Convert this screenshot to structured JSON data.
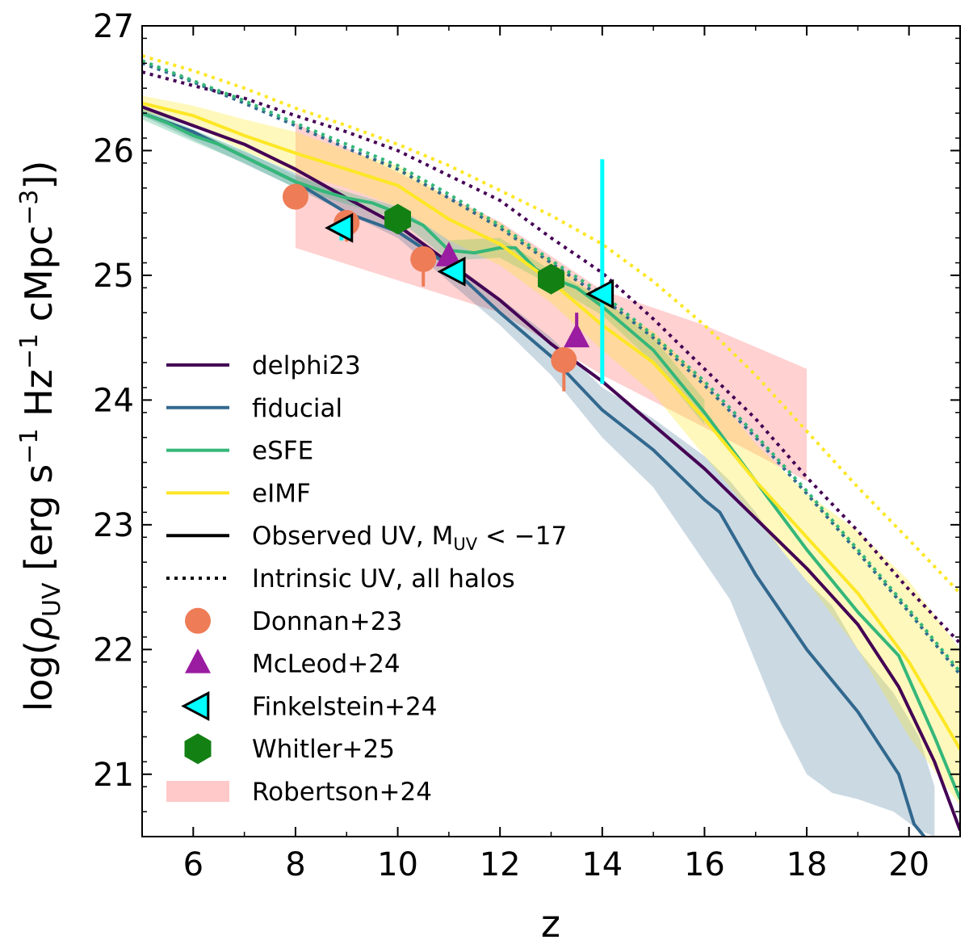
{
  "chart_data": {
    "type": "line",
    "title": "",
    "xlabel": "z",
    "ylabel": "log(ρUV [erg s−1 Hz−1 cMpc−3])",
    "ylabel_parts": {
      "prefix": "log(",
      "rho": "ρ",
      "rho_sub": "UV",
      "units": " [erg s",
      "exp1": "−1",
      "hz": " Hz",
      "exp2": "−1",
      "cmpc": " cMpc",
      "exp3": "−3",
      "suffix": "])"
    },
    "xlim": [
      5,
      21
    ],
    "ylim": [
      20.5,
      27
    ],
    "xticks": [
      6,
      8,
      10,
      12,
      14,
      16,
      18,
      20
    ],
    "yticks": [
      21,
      22,
      23,
      24,
      25,
      26,
      27
    ],
    "legend_position": "lower-left",
    "colors": {
      "delphi23": "#440154",
      "fiducial": "#31688e",
      "eSFE": "#35b779",
      "eIMF": "#fde725",
      "donnan": "#ee7c56",
      "mcleod": "#9a1ca0",
      "finkelstein": "#00ffff",
      "whitler": "#138013",
      "robertson": "#ffc9c9"
    },
    "series": [
      {
        "name": "delphi23",
        "key": "delphi23",
        "style": "solid",
        "x": [
          5,
          6,
          7,
          8,
          9,
          10,
          11,
          12,
          13,
          14,
          15,
          16,
          17,
          18,
          19,
          19.8,
          20.5,
          21
        ],
        "y": [
          26.35,
          26.2,
          26.05,
          25.85,
          25.62,
          25.4,
          25.1,
          24.8,
          24.45,
          24.15,
          23.8,
          23.45,
          23.05,
          22.65,
          22.2,
          21.7,
          21.1,
          20.55
        ]
      },
      {
        "name": "fiducial",
        "key": "fiducial",
        "style": "solid",
        "x": [
          5,
          6,
          7,
          8,
          9,
          10,
          11,
          12,
          13,
          14,
          15,
          16,
          16.3,
          17,
          18,
          19,
          19.8,
          20.1,
          20.3
        ],
        "y": [
          26.3,
          26.15,
          25.95,
          25.75,
          25.5,
          25.35,
          25.08,
          24.7,
          24.35,
          23.92,
          23.6,
          23.2,
          23.1,
          22.6,
          22.0,
          21.5,
          21.0,
          20.6,
          20.5
        ]
      },
      {
        "name": "eSFE",
        "key": "eSFE",
        "style": "solid",
        "x": [
          5,
          5.5,
          6,
          6.5,
          7,
          7.5,
          8,
          8.5,
          9,
          9.5,
          10,
          10.5,
          11,
          11.5,
          12,
          12.3,
          12.7,
          13,
          13.5,
          14,
          15,
          16,
          17,
          18,
          19,
          19.8,
          20.5,
          21
        ],
        "y": [
          26.3,
          26.22,
          26.12,
          26.05,
          25.95,
          25.85,
          25.75,
          25.68,
          25.62,
          25.58,
          25.5,
          25.4,
          25.2,
          25.18,
          25.22,
          25.22,
          25.05,
          24.98,
          24.9,
          24.75,
          24.4,
          23.9,
          23.35,
          22.8,
          22.3,
          21.95,
          21.3,
          20.8
        ]
      },
      {
        "name": "eIMF",
        "key": "eIMF",
        "style": "solid",
        "x": [
          5,
          6,
          7,
          8,
          9,
          10,
          11,
          12,
          13,
          14,
          15,
          16,
          17,
          18,
          19,
          20,
          21
        ],
        "y": [
          26.38,
          26.28,
          26.12,
          25.98,
          25.85,
          25.72,
          25.45,
          25.25,
          24.95,
          24.6,
          24.3,
          23.85,
          23.35,
          22.9,
          22.45,
          21.9,
          21.2
        ]
      },
      {
        "name": "delphi23 intrinsic",
        "key": "delphi23",
        "style": "dotted",
        "x": [
          5,
          6,
          7,
          8,
          9,
          10,
          11,
          12,
          13,
          14,
          15,
          16,
          17,
          18,
          19,
          20,
          21
        ],
        "y": [
          26.63,
          26.52,
          26.42,
          26.28,
          26.15,
          26.0,
          25.8,
          25.6,
          25.3,
          25.02,
          24.65,
          24.25,
          23.85,
          23.38,
          22.95,
          22.48,
          22.05
        ]
      },
      {
        "name": "fiducial intrinsic",
        "key": "fiducial",
        "style": "dotted",
        "x": [
          5,
          6,
          7,
          8,
          9,
          10,
          11,
          12,
          13,
          14,
          15,
          16,
          17,
          18,
          19,
          20,
          21
        ],
        "y": [
          26.7,
          26.55,
          26.38,
          26.2,
          26.02,
          25.85,
          25.62,
          25.38,
          25.1,
          24.82,
          24.5,
          24.12,
          23.7,
          23.25,
          22.78,
          22.3,
          21.8
        ]
      },
      {
        "name": "eSFE intrinsic",
        "key": "eSFE",
        "style": "dotted",
        "x": [
          5,
          6,
          7,
          8,
          9,
          10,
          11,
          12,
          13,
          14,
          15,
          16,
          17,
          18,
          19,
          20,
          21
        ],
        "y": [
          26.72,
          26.56,
          26.4,
          26.22,
          26.05,
          25.88,
          25.65,
          25.4,
          25.12,
          24.85,
          24.52,
          24.15,
          23.72,
          23.27,
          22.8,
          22.32,
          21.82
        ]
      },
      {
        "name": "eIMF intrinsic",
        "key": "eIMF",
        "style": "dotted",
        "x": [
          5,
          6,
          7,
          8,
          9,
          10,
          11,
          12,
          13,
          14,
          15,
          16,
          17,
          18,
          19,
          20,
          21
        ],
        "y": [
          26.76,
          26.64,
          26.5,
          26.34,
          26.2,
          26.05,
          25.88,
          25.68,
          25.48,
          25.25,
          24.95,
          24.6,
          24.2,
          23.75,
          23.3,
          22.88,
          22.45
        ]
      }
    ],
    "bands": [
      {
        "name": "fiducial scatter",
        "key": "fiducial",
        "opacity": 0.25,
        "x": [
          5,
          8,
          10,
          12,
          13,
          14,
          15,
          16,
          16.5,
          17,
          17.5,
          18,
          18.5,
          19,
          19.7,
          20.2,
          20.5
        ],
        "y_low": [
          26.28,
          25.7,
          25.3,
          24.6,
          24.2,
          23.7,
          23.3,
          22.7,
          22.4,
          21.9,
          21.4,
          21.0,
          20.85,
          20.8,
          20.7,
          20.55,
          20.5
        ],
        "y_high": [
          26.33,
          25.82,
          25.42,
          24.82,
          24.5,
          24.1,
          23.85,
          23.55,
          23.35,
          23.1,
          22.8,
          22.55,
          22.35,
          22.0,
          21.65,
          21.3,
          20.9
        ]
      },
      {
        "name": "eSFE scatter",
        "key": "eSFE",
        "opacity": 0.3,
        "x": [
          5,
          6,
          7,
          8,
          9,
          10,
          11,
          12,
          13,
          14,
          15,
          16
        ],
        "y_low": [
          26.25,
          26.07,
          25.9,
          25.7,
          25.57,
          25.45,
          25.12,
          25.14,
          24.92,
          24.68,
          24.3,
          23.8
        ],
        "y_high": [
          26.35,
          26.17,
          26.0,
          25.8,
          25.67,
          25.55,
          25.28,
          25.3,
          25.04,
          24.82,
          24.5,
          24.0
        ]
      },
      {
        "name": "eIMF scatter",
        "key": "eIMF",
        "opacity": 0.3,
        "x": [
          5,
          6,
          7,
          8,
          9,
          10,
          11,
          12,
          13,
          14,
          15,
          16,
          17,
          18,
          19,
          20,
          21
        ],
        "y_low": [
          26.32,
          26.2,
          26.0,
          25.82,
          25.7,
          25.55,
          25.28,
          25.08,
          24.78,
          24.4,
          24.05,
          23.55,
          23.05,
          22.55,
          22.0,
          21.3,
          20.75
        ],
        "y_high": [
          26.44,
          26.36,
          26.25,
          26.15,
          26.0,
          25.88,
          25.62,
          25.42,
          25.12,
          24.8,
          24.55,
          24.15,
          23.65,
          23.25,
          22.95,
          22.55,
          22.0
        ]
      }
    ],
    "robertson_band": {
      "name": "Robertson+24",
      "key": "robertson",
      "x": [
        8,
        12,
        14,
        16,
        18
      ],
      "y_low": [
        25.22,
        24.7,
        24.2,
        23.78,
        23.35
      ],
      "y_high": [
        26.22,
        25.43,
        24.88,
        24.6,
        24.25
      ]
    },
    "observations": [
      {
        "name": "Donnan+23",
        "key": "donnan",
        "marker": "circle",
        "points": [
          {
            "x": 8.0,
            "y": 25.63,
            "err_low": 0.0,
            "err_high": 0.0
          },
          {
            "x": 9.0,
            "y": 25.42,
            "err_low": 0.15,
            "err_high": 0.0
          },
          {
            "x": 10.5,
            "y": 25.13,
            "err_low": 0.22,
            "err_high": 0.0
          },
          {
            "x": 13.25,
            "y": 24.32,
            "err_low": 0.25,
            "err_high": 0.0
          }
        ]
      },
      {
        "name": "McLeod+24",
        "key": "mcleod",
        "marker": "triangle",
        "points": [
          {
            "x": 11.0,
            "y": 25.15,
            "err_low": 0.0,
            "err_high": 0.1
          },
          {
            "x": 13.5,
            "y": 24.5,
            "err_low": 0.0,
            "err_high": 0.2
          }
        ]
      },
      {
        "name": "Finkelstein+24",
        "key": "finkelstein",
        "marker": "triangle-left",
        "points": [
          {
            "x": 8.9,
            "y": 25.38,
            "err_low": 0.1,
            "err_high": 0.0
          },
          {
            "x": 11.1,
            "y": 25.03,
            "err_low": 0.0,
            "err_high": 0.0
          },
          {
            "x": 14.0,
            "y": 24.85,
            "err_low": 0.72,
            "err_high": 1.08
          }
        ]
      },
      {
        "name": "Whitler+25",
        "key": "whitler",
        "marker": "hexagon",
        "points": [
          {
            "x": 10.0,
            "y": 25.45,
            "err_low": 0.0,
            "err_high": 0.0
          },
          {
            "x": 13.0,
            "y": 24.97,
            "err_low": 0.0,
            "err_high": 0.0
          }
        ]
      }
    ],
    "legend": [
      {
        "label": "delphi23",
        "type": "line",
        "key": "delphi23"
      },
      {
        "label": "fiducial",
        "type": "line",
        "key": "fiducial"
      },
      {
        "label": "eSFE",
        "type": "line",
        "key": "eSFE"
      },
      {
        "label": "eIMF",
        "type": "line",
        "key": "eIMF"
      },
      {
        "label": "Observed UV, ",
        "math": "M",
        "math_sub": "UV",
        "math_rest": " < −17",
        "type": "line-black"
      },
      {
        "label": "Intrinsic UV, all halos",
        "type": "dotted-black"
      },
      {
        "label": "Donnan+23",
        "type": "circle",
        "key": "donnan"
      },
      {
        "label": "McLeod+24",
        "type": "triangle",
        "key": "mcleod"
      },
      {
        "label": "Finkelstein+24",
        "type": "triangle-left",
        "key": "finkelstein"
      },
      {
        "label": "Whitler+25",
        "type": "hexagon",
        "key": "whitler"
      },
      {
        "label": "Robertson+24",
        "type": "patch",
        "key": "robertson"
      }
    ]
  }
}
